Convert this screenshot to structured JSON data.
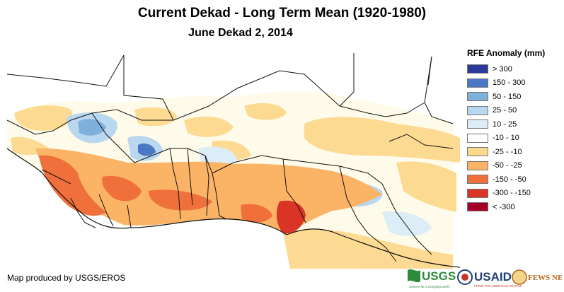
{
  "header": {
    "title": "Current Dekad - Long Term Mean (1920-1980)",
    "subtitle": "June Dekad 2, 2014"
  },
  "legend": {
    "title": "RFE Anomaly (mm)",
    "items": [
      {
        "label": "> 300",
        "color": "#2b3a9a"
      },
      {
        "label": "150 - 300",
        "color": "#4a78c4"
      },
      {
        "label": "50 - 150",
        "color": "#7fb0dc"
      },
      {
        "label": "25 - 50",
        "color": "#b9d7ee"
      },
      {
        "label": "10 - 25",
        "color": "#dcedf7"
      },
      {
        "label": "-10 - 10",
        "color": "#ffffff"
      },
      {
        "label": "-25 - -10",
        "color": "#fdd98e"
      },
      {
        "label": "-50 - -25",
        "color": "#fbb366"
      },
      {
        "label": "-150 - -50",
        "color": "#f0703c"
      },
      {
        "label": "-300 - -150",
        "color": "#d93425"
      },
      {
        "label": "< -300",
        "color": "#a50026"
      }
    ]
  },
  "footer": {
    "credit": "Map produced by USGS/EROS"
  },
  "logos": {
    "usgs": "USGS",
    "usgs_tagline": "science for a changing world",
    "usaid": "USAID",
    "usaid_tagline": "FROM THE AMERICAN PEOPLE",
    "fewsnet": "FEWS NET"
  }
}
